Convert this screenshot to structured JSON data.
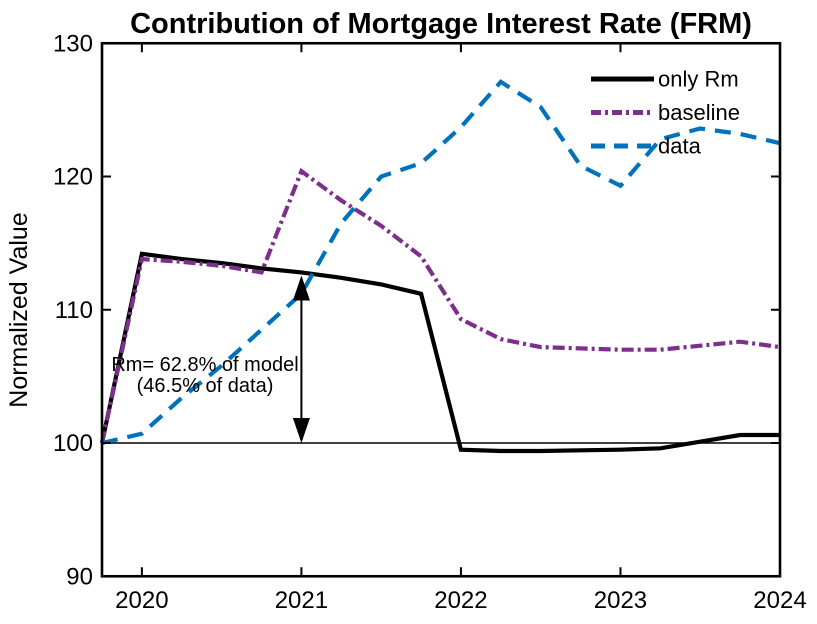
{
  "chart_data": {
    "type": "line",
    "title": "Contribution of Mortgage Interest Rate (FRM)",
    "xlabel": "",
    "ylabel": "Normalized Value",
    "xlim": [
      2019.75,
      2024
    ],
    "ylim": [
      90,
      130
    ],
    "xticks": [
      2020,
      2021,
      2022,
      2023,
      2024
    ],
    "yticks": [
      90,
      100,
      110,
      120,
      130
    ],
    "grid": false,
    "legend_position": "top-right",
    "reference_line_y": 100,
    "x": [
      2019.75,
      2020,
      2020.25,
      2020.5,
      2020.75,
      2021,
      2021.25,
      2021.5,
      2021.75,
      2022,
      2022.25,
      2022.5,
      2022.75,
      2023,
      2023.25,
      2023.5,
      2023.75,
      2024
    ],
    "series": [
      {
        "name": "only Rm",
        "color": "#000000",
        "style": "solid",
        "values": [
          100,
          114.2,
          113.8,
          113.5,
          113.1,
          112.8,
          112.4,
          111.9,
          111.2,
          99.5,
          99.4,
          99.4,
          99.45,
          99.5,
          99.6,
          100.1,
          100.6,
          100.6
        ]
      },
      {
        "name": "baseline",
        "color": "#7E2F8E",
        "style": "dashdot",
        "values": [
          100,
          113.8,
          113.6,
          113.3,
          112.8,
          120.4,
          118.2,
          116.3,
          114,
          109.3,
          107.8,
          107.2,
          107.1,
          107,
          107,
          107.3,
          107.6,
          107.2
        ]
      },
      {
        "name": "data",
        "color": "#0072BD",
        "style": "dashed",
        "values": [
          100,
          100.7,
          103.4,
          105.8,
          108.5,
          111.2,
          116.5,
          120,
          121,
          123.7,
          127.1,
          125.2,
          120.8,
          119.3,
          122.8,
          123.6,
          123.2,
          122.5
        ]
      }
    ],
    "annotation": {
      "line1": "Rm= 62.8% of model",
      "line2": "(46.5% of data)",
      "arrow_x": 2021,
      "arrow_from_value": 112.8,
      "arrow_to_value": 100
    }
  }
}
